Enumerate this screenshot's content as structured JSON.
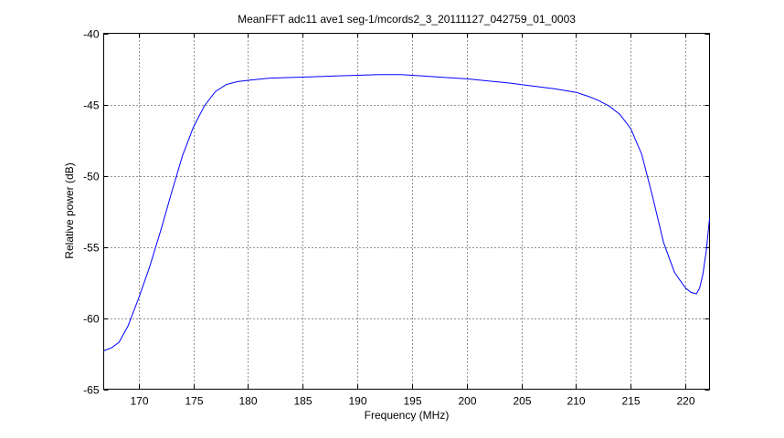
{
  "chart_data": {
    "type": "line",
    "title": "MeanFFT adc11 ave1 seg-1/mcords2_3_20111127_042759_01_0003",
    "xlabel": "Frequency (MHz)",
    "ylabel": "Relative power (dB)",
    "xlim": [
      166.8,
      222.2
    ],
    "ylim": [
      -65,
      -40
    ],
    "xticks": [
      170,
      175,
      180,
      185,
      190,
      195,
      200,
      205,
      210,
      215,
      220
    ],
    "yticks": [
      -40,
      -45,
      -50,
      -55,
      -60,
      -65
    ],
    "grid": true,
    "series": [
      {
        "color": "#0000ff",
        "x": [
          166.8,
          167.5,
          168.2,
          169.0,
          170.0,
          171.0,
          172.0,
          173.0,
          174.0,
          175.0,
          176.0,
          177.0,
          178.0,
          179.0,
          180.0,
          182.0,
          184.0,
          186.0,
          188.0,
          190.0,
          192.0,
          194.0,
          196.0,
          198.0,
          200.0,
          202.0,
          204.0,
          206.0,
          208.0,
          210.0,
          211.0,
          212.0,
          213.0,
          214.0,
          215.0,
          216.0,
          217.0,
          218.0,
          219.0,
          220.0,
          220.5,
          221.0,
          221.3,
          221.6,
          221.9,
          222.2
        ],
        "y": [
          -62.3,
          -62.1,
          -61.7,
          -60.6,
          -58.6,
          -56.4,
          -53.9,
          -51.2,
          -48.6,
          -46.6,
          -45.1,
          -44.1,
          -43.6,
          -43.4,
          -43.3,
          -43.15,
          -43.1,
          -43.05,
          -43.0,
          -42.95,
          -42.9,
          -42.9,
          -43.0,
          -43.1,
          -43.2,
          -43.35,
          -43.5,
          -43.7,
          -43.9,
          -44.15,
          -44.4,
          -44.7,
          -45.1,
          -45.7,
          -46.7,
          -48.5,
          -51.5,
          -54.7,
          -56.8,
          -57.9,
          -58.2,
          -58.3,
          -57.9,
          -56.9,
          -55.3,
          -53.0
        ]
      }
    ]
  }
}
